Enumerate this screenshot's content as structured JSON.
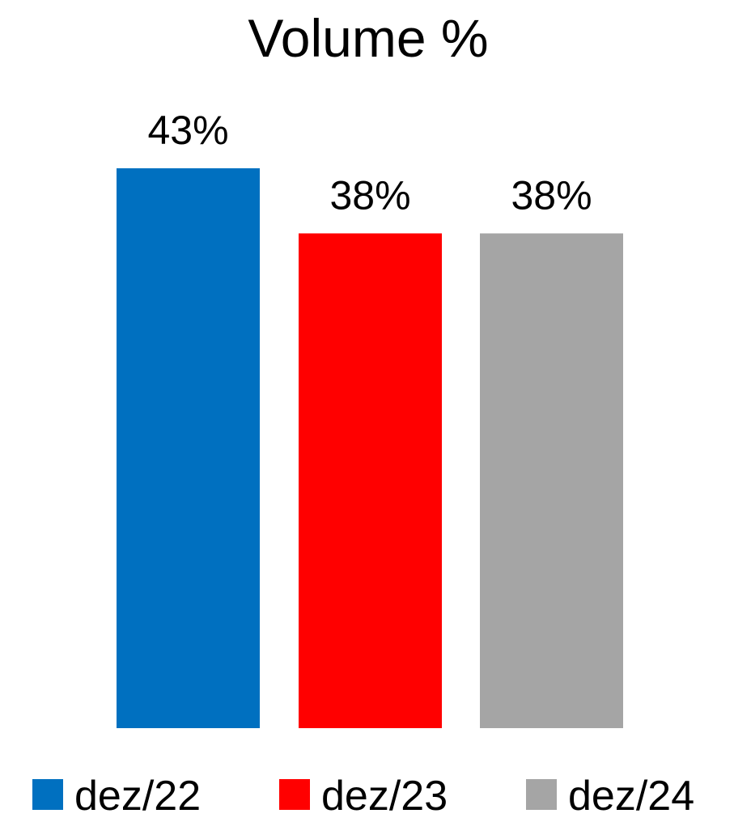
{
  "chart_data": {
    "type": "bar",
    "title": "Volume %",
    "xlabel": "",
    "ylabel": "",
    "ylim": [
      0,
      43
    ],
    "grid": false,
    "legend_position": "bottom",
    "series": [
      {
        "name": "dez/22",
        "values": [
          43
        ],
        "label": "43%",
        "color": "#0070C0"
      },
      {
        "name": "dez/23",
        "values": [
          38
        ],
        "label": "38%",
        "color": "#FF0000"
      },
      {
        "name": "dez/24",
        "values": [
          38
        ],
        "label": "38%",
        "color": "#A5A5A5"
      }
    ]
  }
}
